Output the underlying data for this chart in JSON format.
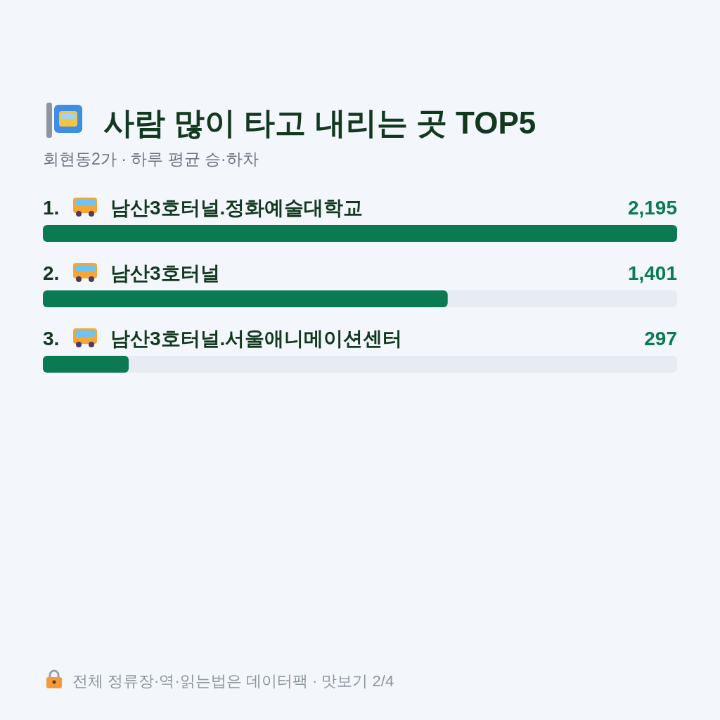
{
  "chart_data": {
    "type": "bar",
    "orientation": "horizontal",
    "title": "사람 많이 타고 내리는 곳 TOP5",
    "subtitle": "회현동2가 · 하루 평균 승·하차",
    "categories": [
      "1. 남산3호터널.정화예술대학교",
      "2. 남산3호터널",
      "3. 남산3호터널.서울애니메이션센터"
    ],
    "values": [
      2195,
      1401,
      297
    ],
    "value_labels": [
      "2,195",
      "1,401",
      "297"
    ],
    "color": "#0b7a53",
    "tick_labels": "y",
    "annotations": [
      "전체 정류장·역·읽는법은 데이터팩 · 맛보기 2/4"
    ]
  }
}
